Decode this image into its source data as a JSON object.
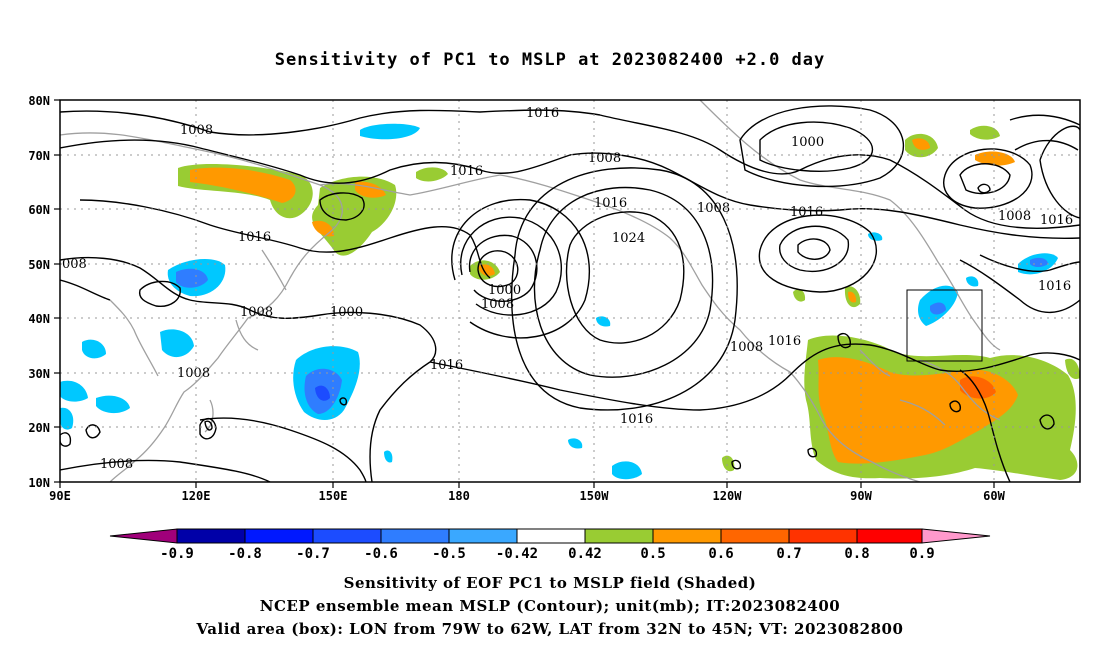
{
  "title": "Sensitivity of PC1 to MSLP at 2023082400 +2.0 day",
  "map": {
    "lat_labels": [
      "80N",
      "70N",
      "60N",
      "50N",
      "40N",
      "30N",
      "20N",
      "10N"
    ],
    "lon_labels": [
      "90E",
      "120E",
      "150E",
      "180",
      "150W",
      "120W",
      "90W",
      "60W"
    ],
    "lon_range": [
      "90E",
      "50W"
    ],
    "lat_range": [
      "10N",
      "80N"
    ],
    "gridlines": "dotted",
    "contour_labels": [
      "1008",
      "1016",
      "1000",
      "1008",
      "1016",
      "1008",
      "1016",
      "1024",
      "1008",
      "1016",
      "1016",
      "1000",
      "1008",
      "1016",
      "1008",
      "1000",
      "1008",
      "1016",
      "1016",
      "1016",
      "1008",
      "1016",
      "1008",
      "1008",
      "008"
    ],
    "valid_box": {
      "lon": [
        "79W",
        "62W"
      ],
      "lat": [
        "32N",
        "45N"
      ]
    }
  },
  "colorbar": {
    "labels": [
      "-0.9",
      "-0.8",
      "-0.7",
      "-0.6",
      "-0.5",
      "-0.42",
      "0.42",
      "0.5",
      "0.6",
      "0.7",
      "0.8",
      "0.9"
    ],
    "colors": [
      "#a0007a",
      "#0000a8",
      "#0018ff",
      "#1c4cff",
      "#2f7dff",
      "#3aa8ff",
      "#00c8ff",
      "#ffffff",
      "#99cc33",
      "#ff9900",
      "#ff6600",
      "#ff3300",
      "#ff0000",
      "#ff99cc"
    ]
  },
  "captions": [
    "Sensitivity of EOF PC1 to MSLP field (Shaded)",
    "NCEP ensemble mean MSLP (Contour); unit(mb); IT:2023082400",
    "Valid area (box): LON from 79W to 62W, LAT from 32N to 45N; VT: 2023082800"
  ]
}
